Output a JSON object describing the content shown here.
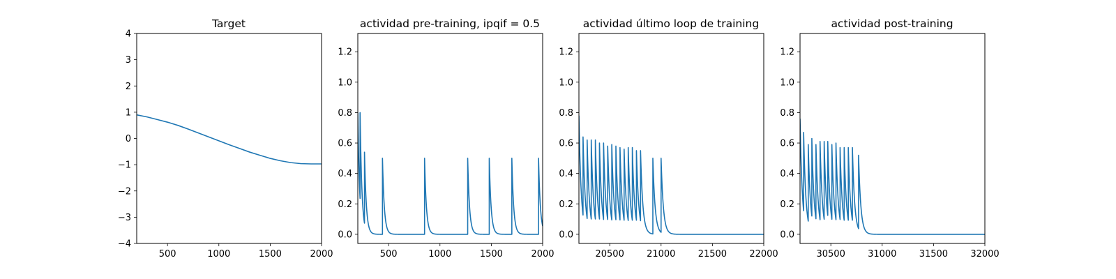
{
  "figure": {
    "background": "#ffffff",
    "line_color": "#1f77b4"
  },
  "chart_data": [
    {
      "type": "line",
      "title": "Target",
      "xlabel": "",
      "ylabel": "",
      "xlim": [
        200,
        2000
      ],
      "ylim": [
        -4,
        4
      ],
      "xticks": [
        500,
        1000,
        1500,
        2000
      ],
      "yticks": [
        -4,
        -3,
        -2,
        -1,
        0,
        1,
        2,
        3,
        4
      ],
      "grid": false,
      "legend": "none",
      "series": [
        {
          "mode": "points",
          "x": [
            200,
            300,
            400,
            500,
            600,
            700,
            800,
            900,
            1000,
            1100,
            1200,
            1300,
            1400,
            1500,
            1600,
            1700,
            1800,
            1900,
            2000
          ],
          "y": [
            0.9,
            0.82,
            0.72,
            0.62,
            0.5,
            0.36,
            0.21,
            0.06,
            -0.09,
            -0.24,
            -0.38,
            -0.52,
            -0.64,
            -0.76,
            -0.85,
            -0.92,
            -0.96,
            -0.97,
            -0.97
          ]
        }
      ]
    },
    {
      "type": "line",
      "title": "actividad pre-training, ipqif = 0.5",
      "xlabel": "",
      "ylabel": "",
      "xlim": [
        200,
        2000
      ],
      "ylim": [
        -0.06,
        1.32
      ],
      "xticks": [
        500,
        1000,
        1500,
        2000
      ],
      "yticks": [
        0.0,
        0.2,
        0.4,
        0.6,
        0.8,
        1.0,
        1.2
      ],
      "grid": false,
      "legend": "none",
      "series": [
        {
          "mode": "spikes",
          "x_start": 200,
          "x_end": 2000,
          "start_value": 0.8,
          "decay_constant": 18,
          "spike_times": [
            222,
            265,
            440,
            850,
            1270,
            1480,
            1700,
            1960
          ],
          "spike_peaks": [
            0.8,
            0.54,
            0.5,
            0.5,
            0.5,
            0.5,
            0.5,
            0.5
          ]
        }
      ]
    },
    {
      "type": "line",
      "title": "actividad último loop de training",
      "xlabel": "",
      "ylabel": "",
      "xlim": [
        20200,
        22000
      ],
      "ylim": [
        -0.06,
        1.32
      ],
      "xticks": [
        20500,
        21000,
        21500,
        22000
      ],
      "yticks": [
        0.0,
        0.2,
        0.4,
        0.6,
        0.8,
        1.0,
        1.2
      ],
      "grid": false,
      "legend": "none",
      "series": [
        {
          "mode": "spikes",
          "x_start": 20200,
          "x_end": 22000,
          "start_value": 0.78,
          "decay_constant": 22,
          "spike_times": [
            20240,
            20280,
            20320,
            20360,
            20400,
            20440,
            20480,
            20520,
            20560,
            20600,
            20640,
            20680,
            20720,
            20760,
            20800,
            20920,
            21000
          ],
          "spike_peaks": [
            0.64,
            0.62,
            0.62,
            0.62,
            0.6,
            0.6,
            0.58,
            0.59,
            0.58,
            0.57,
            0.56,
            0.57,
            0.57,
            0.55,
            0.55,
            0.5,
            0.5
          ]
        }
      ]
    },
    {
      "type": "line",
      "title": "actividad post-training",
      "xlabel": "",
      "ylabel": "",
      "xlim": [
        30200,
        32000
      ],
      "ylim": [
        -0.06,
        1.32
      ],
      "xticks": [
        30500,
        31000,
        31500,
        32000
      ],
      "yticks": [
        0.0,
        0.2,
        0.4,
        0.6,
        0.8,
        1.0,
        1.2
      ],
      "grid": false,
      "legend": "none",
      "series": [
        {
          "mode": "spikes",
          "x_start": 30200,
          "x_end": 32000,
          "start_value": 0.76,
          "decay_constant": 22,
          "spike_times": [
            30235,
            30280,
            30315,
            30355,
            30395,
            30435,
            30470,
            30510,
            30550,
            30590,
            30630,
            30670,
            30710,
            30770
          ],
          "spike_peaks": [
            0.67,
            0.59,
            0.63,
            0.59,
            0.61,
            0.61,
            0.61,
            0.59,
            0.6,
            0.57,
            0.57,
            0.57,
            0.57,
            0.52
          ]
        }
      ]
    }
  ]
}
